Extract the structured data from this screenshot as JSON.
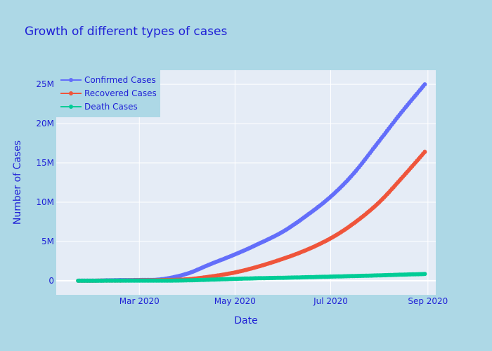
{
  "chart_data": {
    "type": "line",
    "title": "Growth of different types of cases",
    "xlabel": "Date",
    "ylabel": "Number of Cases",
    "x_range": [
      "2020-01-08",
      "2020-09-06"
    ],
    "x_ticks": [
      {
        "date": "2020-03-01",
        "label": "Mar 2020"
      },
      {
        "date": "2020-05-01",
        "label": "May 2020"
      },
      {
        "date": "2020-07-01",
        "label": "Jul 2020"
      },
      {
        "date": "2020-09-01",
        "label": "Sep 2020"
      }
    ],
    "ylim": [
      -1800000,
      26800000
    ],
    "y_ticks": [
      {
        "value": 0,
        "label": "0"
      },
      {
        "value": 5000000,
        "label": "5M"
      },
      {
        "value": 10000000,
        "label": "10M"
      },
      {
        "value": 15000000,
        "label": "15M"
      },
      {
        "value": 20000000,
        "label": "20M"
      },
      {
        "value": 25000000,
        "label": "25M"
      }
    ],
    "grid": true,
    "legend_position": "top-left",
    "x": [
      "2020-01-22",
      "2020-02-01",
      "2020-02-15",
      "2020-03-01",
      "2020-03-15",
      "2020-04-01",
      "2020-04-15",
      "2020-05-01",
      "2020-05-15",
      "2020-06-01",
      "2020-06-15",
      "2020-07-01",
      "2020-07-15",
      "2020-08-01",
      "2020-08-15",
      "2020-08-30"
    ],
    "series": [
      {
        "name": "Confirmed Cases",
        "color": "#636efa",
        "values": [
          600,
          12000,
          70000,
          90000,
          180000,
          930000,
          2080000,
          3350000,
          4600000,
          6300000,
          8200000,
          10700000,
          13500000,
          17800000,
          21400000,
          25000000
        ]
      },
      {
        "name": "Recovered Cases",
        "color": "#ef553b",
        "values": [
          30,
          300,
          10000,
          45000,
          75000,
          190000,
          520000,
          1050000,
          1750000,
          2820000,
          3870000,
          5400000,
          7200000,
          10000000,
          13000000,
          16400000
        ]
      },
      {
        "name": "Death Cases",
        "color": "#00cc96",
        "values": [
          17,
          260,
          1700,
          3000,
          6500,
          47000,
          130000,
          235000,
          310000,
          375000,
          440000,
          520000,
          590000,
          680000,
          770000,
          850000
        ]
      }
    ]
  }
}
